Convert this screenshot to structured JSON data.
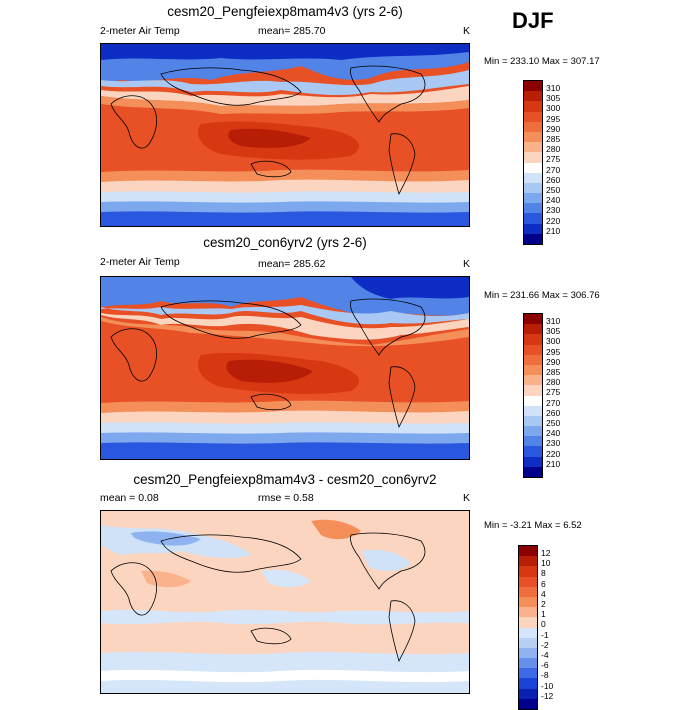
{
  "season": "DJF",
  "units": "K",
  "panels": [
    {
      "title": "cesm20_Pengfeiexp8mam4v3 (yrs 2-6)",
      "left_label": "2-meter Air Temp",
      "center_label": "mean= 285.70",
      "right_label": "K",
      "minmax": "Min = 233.10 Max = 307.17",
      "colorbar_labels": [
        "310",
        "305",
        "300",
        "295",
        "290",
        "285",
        "280",
        "275",
        "270",
        "260",
        "250",
        "240",
        "230",
        "220",
        "210"
      ],
      "colorbar_colors": [
        "#8b0000",
        "#b81d06",
        "#d73812",
        "#e85025",
        "#f06e3c",
        "#f58f5a",
        "#f9b28c",
        "#fbd5bf",
        "#ffffff",
        "#cfe2f8",
        "#a9c8f3",
        "#7ea8ee",
        "#5284e8",
        "#2957e0",
        "#0e2dc4",
        "#00008b"
      ]
    },
    {
      "title": "cesm20_con6yrv2 (yrs 2-6)",
      "left_label": "2-meter Air Temp",
      "center_label": "mean= 285.62",
      "right_label": "K",
      "minmax": "Min = 231.66 Max = 306.76",
      "colorbar_labels": [
        "310",
        "305",
        "300",
        "295",
        "290",
        "285",
        "280",
        "275",
        "270",
        "260",
        "250",
        "240",
        "230",
        "220",
        "210"
      ],
      "colorbar_colors": [
        "#8b0000",
        "#b81d06",
        "#d73812",
        "#e85025",
        "#f06e3c",
        "#f58f5a",
        "#f9b28c",
        "#fbd5bf",
        "#ffffff",
        "#cfe2f8",
        "#a9c8f3",
        "#7ea8ee",
        "#5284e8",
        "#2957e0",
        "#0e2dc4",
        "#00008b"
      ]
    },
    {
      "title": "cesm20_Pengfeiexp8mam4v3 - cesm20_con6yrv2",
      "left_label": "mean =   0.08",
      "center_label": "rmse =   0.58",
      "right_label": "K",
      "minmax": "Min =  -3.21 Max =   6.52",
      "colorbar_labels": [
        "12",
        "10",
        "8",
        "6",
        "4",
        "2",
        "1",
        "0",
        "-1",
        "-2",
        "-4",
        "-6",
        "-8",
        "-10",
        "-12"
      ],
      "colorbar_colors": [
        "#8b0000",
        "#b81d06",
        "#d73812",
        "#e85025",
        "#f06e3c",
        "#f58f5a",
        "#f9b28c",
        "#fbd5bf",
        "#d6e6fa",
        "#b6d0f5",
        "#8fb3f0",
        "#6690ea",
        "#3d6ae4",
        "#1b42d6",
        "#0a20b0",
        "#00008b"
      ]
    }
  ]
}
